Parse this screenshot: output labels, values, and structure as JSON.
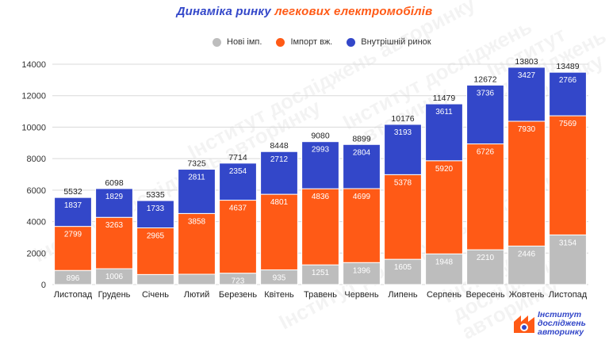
{
  "title_part1": "Динаміка ринку ",
  "title_part2": "легкових електромобілів",
  "legend": [
    {
      "label": "Нові імп.",
      "color": "#bdbdbd"
    },
    {
      "label": "Імпорт вж.",
      "color": "#ff5a16"
    },
    {
      "label": "Внутрішній ринок",
      "color": "#3347c9"
    }
  ],
  "watermark_text": "Інститут досліджень авторинку",
  "logo": {
    "line1": "Інститут",
    "line2": "досліджень",
    "line3": "авторинку"
  },
  "chart_data": {
    "type": "bar",
    "stacked": true,
    "categories": [
      "Листопад",
      "Грудень",
      "Січень",
      "Лютий",
      "Березень",
      "Квітень",
      "Травень",
      "Червень",
      "Липень",
      "Серпень",
      "Вересень",
      "Жовтень",
      "Листопад"
    ],
    "series": [
      {
        "name": "Нові імп.",
        "color": "#bdbdbd",
        "values": [
          896,
          1006,
          637,
          656,
          723,
          935,
          1251,
          1396,
          1605,
          1948,
          2210,
          2446,
          3154
        ],
        "labels": [
          "896",
          "1006",
          "",
          "",
          "723",
          "935",
          "1251",
          "1396",
          "1605",
          "1948",
          "2210",
          "2446",
          "3154"
        ]
      },
      {
        "name": "Імпорт вж.",
        "color": "#ff5a16",
        "values": [
          2799,
          3263,
          2965,
          3858,
          4637,
          4801,
          4836,
          4699,
          5378,
          5920,
          6726,
          7930,
          7569
        ],
        "labels": [
          "2799",
          "3263",
          "2965",
          "3858",
          "4637",
          "4801",
          "4836",
          "4699",
          "5378",
          "5920",
          "6726",
          "7930",
          "7569"
        ]
      },
      {
        "name": "Внутрішній ринок",
        "color": "#3347c9",
        "values": [
          1837,
          1829,
          1733,
          2811,
          2354,
          2712,
          2993,
          2804,
          3193,
          3611,
          3736,
          3427,
          2766
        ],
        "labels": [
          "1837",
          "1829",
          "1733",
          "2811",
          "2354",
          "2712",
          "2993",
          "2804",
          "3193",
          "3611",
          "3736",
          "3427",
          "2766"
        ]
      }
    ],
    "totals": [
      "5532",
      "6098",
      "5335",
      "7325",
      "7714",
      "8448",
      "9080",
      "8899",
      "10176",
      "11479",
      "12672",
      "13803",
      "13489"
    ],
    "yticks": [
      "0",
      "2000",
      "4000",
      "6000",
      "8000",
      "10000",
      "12000",
      "14000"
    ],
    "ylim": [
      0,
      14000
    ],
    "grid": true,
    "legend_position": "top-center"
  }
}
